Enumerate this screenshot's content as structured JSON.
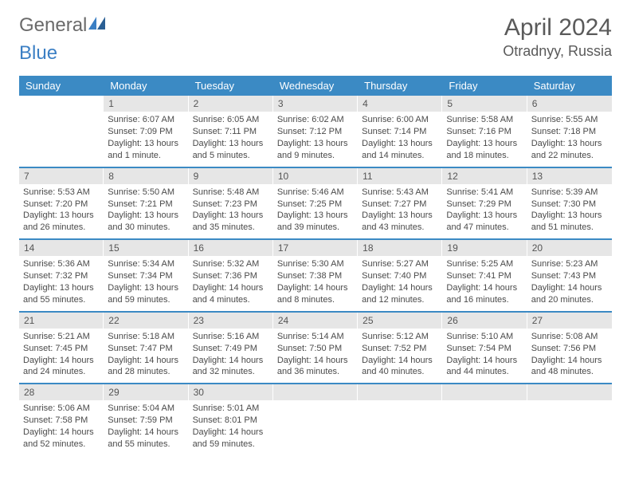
{
  "brand": {
    "part1": "General",
    "part2": "Blue"
  },
  "title": "April 2024",
  "location": "Otradnyy, Russia",
  "colors": {
    "header_bg": "#3b8ac4",
    "header_text": "#ffffff",
    "daynum_bg": "#e6e6e6",
    "border": "#3b8ac4",
    "text": "#4a4a4a"
  },
  "day_names": [
    "Sunday",
    "Monday",
    "Tuesday",
    "Wednesday",
    "Thursday",
    "Friday",
    "Saturday"
  ],
  "grid": {
    "first_day_offset": 1,
    "days_in_month": 30
  },
  "days": {
    "1": {
      "sunrise": "6:07 AM",
      "sunset": "7:09 PM",
      "daylight": "13 hours and 1 minute."
    },
    "2": {
      "sunrise": "6:05 AM",
      "sunset": "7:11 PM",
      "daylight": "13 hours and 5 minutes."
    },
    "3": {
      "sunrise": "6:02 AM",
      "sunset": "7:12 PM",
      "daylight": "13 hours and 9 minutes."
    },
    "4": {
      "sunrise": "6:00 AM",
      "sunset": "7:14 PM",
      "daylight": "13 hours and 14 minutes."
    },
    "5": {
      "sunrise": "5:58 AM",
      "sunset": "7:16 PM",
      "daylight": "13 hours and 18 minutes."
    },
    "6": {
      "sunrise": "5:55 AM",
      "sunset": "7:18 PM",
      "daylight": "13 hours and 22 minutes."
    },
    "7": {
      "sunrise": "5:53 AM",
      "sunset": "7:20 PM",
      "daylight": "13 hours and 26 minutes."
    },
    "8": {
      "sunrise": "5:50 AM",
      "sunset": "7:21 PM",
      "daylight": "13 hours and 30 minutes."
    },
    "9": {
      "sunrise": "5:48 AM",
      "sunset": "7:23 PM",
      "daylight": "13 hours and 35 minutes."
    },
    "10": {
      "sunrise": "5:46 AM",
      "sunset": "7:25 PM",
      "daylight": "13 hours and 39 minutes."
    },
    "11": {
      "sunrise": "5:43 AM",
      "sunset": "7:27 PM",
      "daylight": "13 hours and 43 minutes."
    },
    "12": {
      "sunrise": "5:41 AM",
      "sunset": "7:29 PM",
      "daylight": "13 hours and 47 minutes."
    },
    "13": {
      "sunrise": "5:39 AM",
      "sunset": "7:30 PM",
      "daylight": "13 hours and 51 minutes."
    },
    "14": {
      "sunrise": "5:36 AM",
      "sunset": "7:32 PM",
      "daylight": "13 hours and 55 minutes."
    },
    "15": {
      "sunrise": "5:34 AM",
      "sunset": "7:34 PM",
      "daylight": "13 hours and 59 minutes."
    },
    "16": {
      "sunrise": "5:32 AM",
      "sunset": "7:36 PM",
      "daylight": "14 hours and 4 minutes."
    },
    "17": {
      "sunrise": "5:30 AM",
      "sunset": "7:38 PM",
      "daylight": "14 hours and 8 minutes."
    },
    "18": {
      "sunrise": "5:27 AM",
      "sunset": "7:40 PM",
      "daylight": "14 hours and 12 minutes."
    },
    "19": {
      "sunrise": "5:25 AM",
      "sunset": "7:41 PM",
      "daylight": "14 hours and 16 minutes."
    },
    "20": {
      "sunrise": "5:23 AM",
      "sunset": "7:43 PM",
      "daylight": "14 hours and 20 minutes."
    },
    "21": {
      "sunrise": "5:21 AM",
      "sunset": "7:45 PM",
      "daylight": "14 hours and 24 minutes."
    },
    "22": {
      "sunrise": "5:18 AM",
      "sunset": "7:47 PM",
      "daylight": "14 hours and 28 minutes."
    },
    "23": {
      "sunrise": "5:16 AM",
      "sunset": "7:49 PM",
      "daylight": "14 hours and 32 minutes."
    },
    "24": {
      "sunrise": "5:14 AM",
      "sunset": "7:50 PM",
      "daylight": "14 hours and 36 minutes."
    },
    "25": {
      "sunrise": "5:12 AM",
      "sunset": "7:52 PM",
      "daylight": "14 hours and 40 minutes."
    },
    "26": {
      "sunrise": "5:10 AM",
      "sunset": "7:54 PM",
      "daylight": "14 hours and 44 minutes."
    },
    "27": {
      "sunrise": "5:08 AM",
      "sunset": "7:56 PM",
      "daylight": "14 hours and 48 minutes."
    },
    "28": {
      "sunrise": "5:06 AM",
      "sunset": "7:58 PM",
      "daylight": "14 hours and 52 minutes."
    },
    "29": {
      "sunrise": "5:04 AM",
      "sunset": "7:59 PM",
      "daylight": "14 hours and 55 minutes."
    },
    "30": {
      "sunrise": "5:01 AM",
      "sunset": "8:01 PM",
      "daylight": "14 hours and 59 minutes."
    }
  },
  "labels": {
    "sunrise": "Sunrise: ",
    "sunset": "Sunset: ",
    "daylight": "Daylight: "
  }
}
